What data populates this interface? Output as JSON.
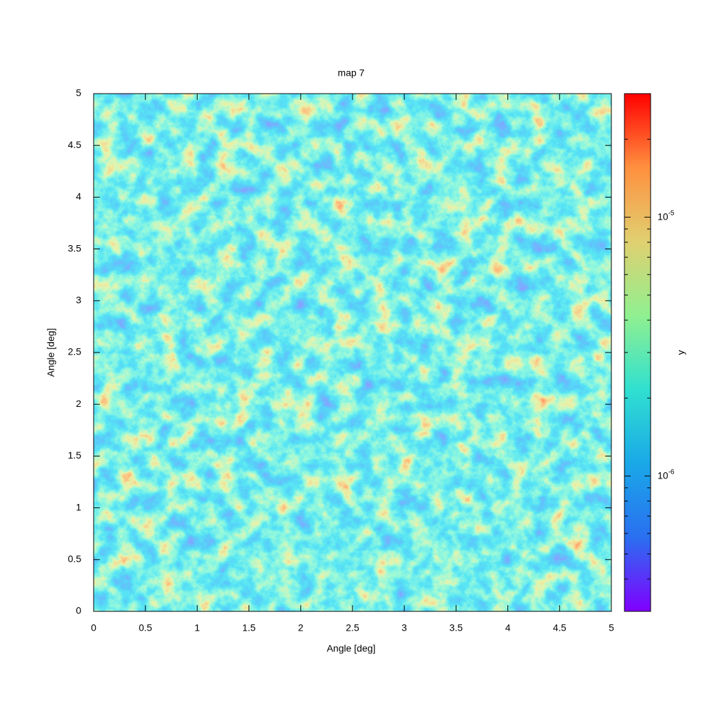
{
  "chart_data": {
    "type": "heatmap",
    "title": "map 7",
    "xlabel": "Angle [deg]",
    "ylabel": "Angle [deg]",
    "xlim": [
      0,
      5
    ],
    "ylim": [
      0,
      5
    ],
    "xticks": [
      0,
      0.5,
      1,
      1.5,
      2,
      2.5,
      3,
      3.5,
      4,
      4.5,
      5
    ],
    "yticks": [
      0,
      0.5,
      1,
      1.5,
      2,
      2.5,
      3,
      3.5,
      4,
      4.5,
      5
    ],
    "colorbar": {
      "label": "y",
      "log_scale": true,
      "lim": [
        3e-07,
        3e-05
      ],
      "ticks": [
        {
          "value": 1e-06,
          "label": "10^-6"
        },
        {
          "value": 1e-05,
          "label": "10^-5"
        }
      ],
      "minor_ticks": [
        4e-07,
        5e-07,
        6e-07,
        7e-07,
        8e-07,
        9e-07,
        2e-06,
        3e-06,
        4e-06,
        5e-06,
        6e-06,
        7e-06,
        8e-06,
        9e-06,
        2e-05,
        3e-05
      ],
      "colormap": [
        "#8000ff",
        "#2a6ff0",
        "#1aa8e8",
        "#30e0d0",
        "#90f090",
        "#e0d070",
        "#ff9040",
        "#ff0000"
      ]
    }
  }
}
